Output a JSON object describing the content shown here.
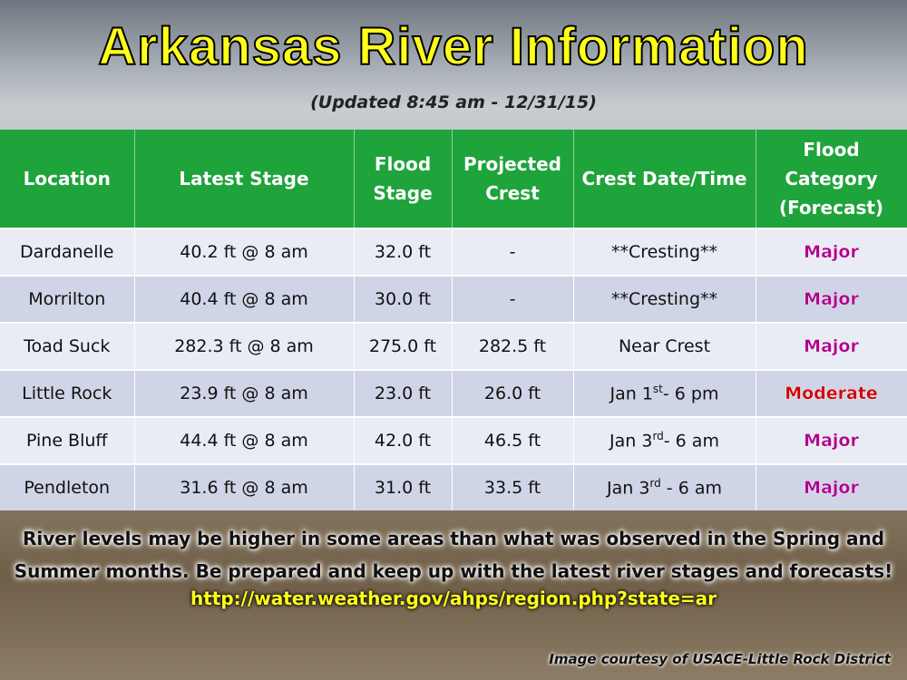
{
  "header": {
    "title": "Arkansas River Information",
    "subtitle": "(Updated 8:45 am - 12/31/15)"
  },
  "table": {
    "columns": [
      "Location",
      "Latest  Stage",
      "Flood Stage",
      "Projected Crest",
      "Crest Date/Time",
      "Flood Category (Forecast)"
    ],
    "rows": [
      [
        "Dardanelle",
        "40.2 ft @ 8 am",
        "32.0 ft",
        "-",
        {
          "base": "**Cresting**"
        },
        "Major"
      ],
      [
        "Morrilton",
        "40.4 ft @ 8 am",
        "30.0 ft",
        "-",
        {
          "base": "**Cresting**"
        },
        "Major"
      ],
      [
        "Toad Suck",
        "282.3 ft @ 8 am",
        "275.0 ft",
        "282.5 ft",
        {
          "base": "Near Crest"
        },
        "Major"
      ],
      [
        "Little Rock",
        "23.9 ft @ 8 am",
        "23.0 ft",
        "26.0 ft",
        {
          "base": "Jan 1",
          "sup": "st",
          "tail": "- 6 pm"
        },
        "Moderate"
      ],
      [
        "Pine Bluff",
        "44.4 ft @ 8 am",
        "42.0 ft",
        "46.5 ft",
        {
          "base": "Jan 3",
          "sup": "rd",
          "tail": "- 6 am"
        },
        "Major"
      ],
      [
        "Pendleton",
        "31.6 ft @ 8 am",
        "31.0 ft",
        "33.5 ft",
        {
          "base": "Jan 3",
          "sup": "rd",
          "tail": " - 6 am"
        },
        "Major"
      ]
    ],
    "category_colors": {
      "Major": "#b0008c",
      "Moderate": "#d00000"
    }
  },
  "footer": {
    "message": "River levels may be higher in some areas than what was observed in the Spring and Summer months. Be prepared and keep up with the latest river stages and forecasts!",
    "link": "http://water.weather.gov/ahps/region.php?state=ar",
    "credit": "Image courtesy of USACE-Little Rock District"
  }
}
